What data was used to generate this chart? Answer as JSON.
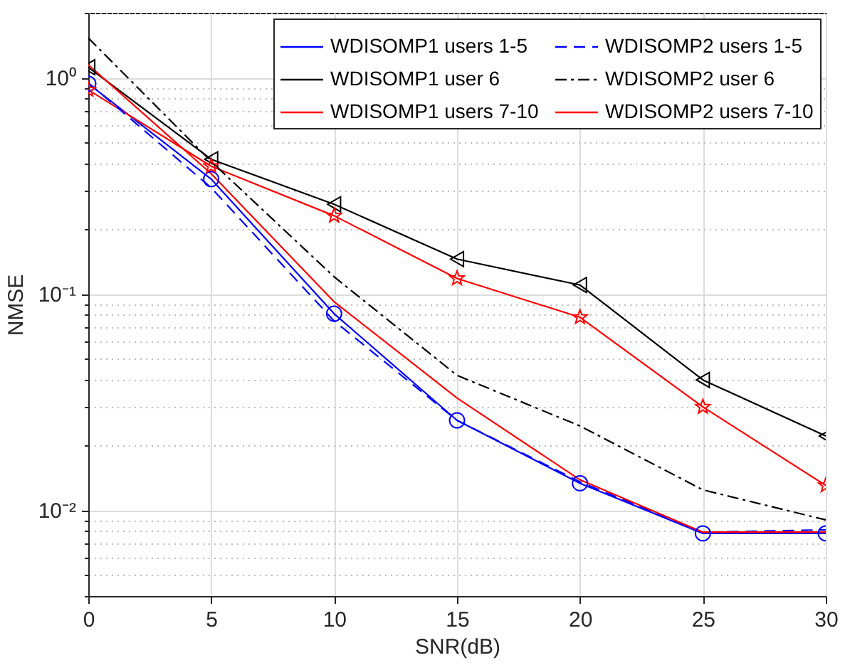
{
  "chart_data": {
    "type": "line",
    "xlabel": "SNR(dB)",
    "ylabel": "NMSE",
    "x": [
      0,
      5,
      10,
      15,
      20,
      25,
      30
    ],
    "series": [
      {
        "name": "WDISOMP1 users 1-5",
        "color": "#0000ff",
        "marker": "circle",
        "line_style": "solid",
        "values": [
          0.94,
          0.34,
          0.081,
          0.026,
          0.0133,
          0.0078,
          0.0078
        ]
      },
      {
        "name": "WDISOMP1 user 6",
        "color": "#000000",
        "marker": "triangle",
        "line_style": "solid",
        "values": [
          1.12,
          0.42,
          0.26,
          0.145,
          0.11,
          0.04,
          0.022
        ]
      },
      {
        "name": "WDISOMP1 users 7-10",
        "color": "#ff0000",
        "marker": "star",
        "line_style": "solid",
        "values": [
          0.88,
          0.39,
          0.23,
          0.118,
          0.078,
          0.03,
          0.013
        ]
      },
      {
        "name": "WDISOMP2 users 1-5",
        "color": "#0000ff",
        "marker": "none",
        "line_style": "dashed",
        "values": [
          0.95,
          0.31,
          0.075,
          0.026,
          0.0135,
          0.0079,
          0.0081
        ]
      },
      {
        "name": "WDISOMP2 user 6",
        "color": "#000000",
        "marker": "none",
        "line_style": "dashdot",
        "values": [
          1.53,
          0.41,
          0.12,
          0.042,
          0.0245,
          0.0124,
          0.009
        ]
      },
      {
        "name": "WDISOMP2 users 7-10",
        "color": "#ff0000",
        "marker": "none",
        "line_style": "solid",
        "values": [
          1.15,
          0.36,
          0.092,
          0.033,
          0.0138,
          0.0079,
          0.0079
        ]
      }
    ],
    "log": "y",
    "grid": true,
    "legend": "top right",
    "xlim": [
      0,
      30
    ],
    "xticks": [
      0,
      5,
      10,
      15,
      20,
      25,
      30
    ],
    "ylim": [
      0.004,
      2
    ],
    "yticks": [
      {
        "value": 0.004,
        "label": null
      },
      {
        "value": 0.005,
        "label": null
      },
      {
        "value": 0.006,
        "label": null
      },
      {
        "value": 0.007,
        "label": null
      },
      {
        "value": 0.008,
        "label": null
      },
      {
        "value": 0.009,
        "label": null
      },
      {
        "value": 0.01,
        "label": "10⁻²"
      },
      {
        "value": 0.02,
        "label": null
      },
      {
        "value": 0.03,
        "label": null
      },
      {
        "value": 0.04,
        "label": null
      },
      {
        "value": 0.05,
        "label": null
      },
      {
        "value": 0.06,
        "label": null
      },
      {
        "value": 0.07,
        "label": null
      },
      {
        "value": 0.08,
        "label": null
      },
      {
        "value": 0.09,
        "label": null
      },
      {
        "value": 0.1,
        "label": "10⁻¹"
      },
      {
        "value": 0.2,
        "label": null
      },
      {
        "value": 0.3,
        "label": null
      },
      {
        "value": 0.4,
        "label": null
      },
      {
        "value": 0.5,
        "label": null
      },
      {
        "value": 0.6,
        "label": null
      },
      {
        "value": 0.7,
        "label": null
      },
      {
        "value": 0.8,
        "label": null
      },
      {
        "value": 0.9,
        "label": null
      },
      {
        "value": 1,
        "label": "10⁰"
      },
      {
        "value": 2,
        "label": null
      }
    ]
  }
}
